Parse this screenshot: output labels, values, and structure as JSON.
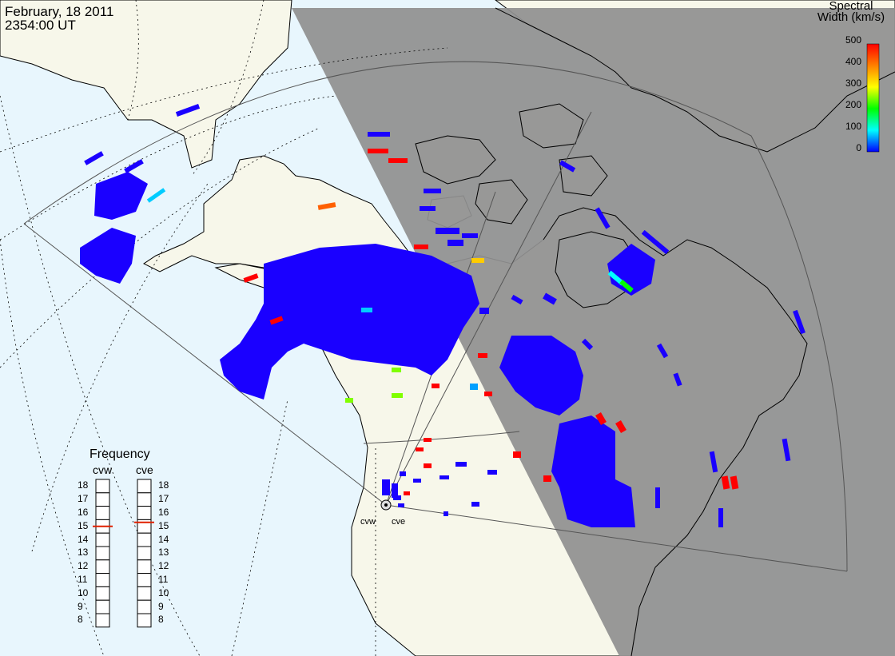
{
  "header": {
    "date": "February, 18 2011",
    "time": "2354:00 UT"
  },
  "colorbar": {
    "title_line1": "Spectral",
    "title_line2": "Width (km/s)",
    "ticks": [
      "500",
      "400",
      "300",
      "200",
      "100",
      "0"
    ],
    "colors": [
      "#ff0000",
      "#ff8000",
      "#ffff00",
      "#00ff00",
      "#00ffff",
      "#0000ff"
    ]
  },
  "frequency_panel": {
    "title": "Frequency",
    "radars": [
      {
        "name": "cvw",
        "freq_mhz": 15.0
      },
      {
        "name": "cve",
        "freq_mhz": 15.3
      }
    ],
    "scale": [
      "18",
      "17",
      "16",
      "15",
      "14",
      "13",
      "12",
      "11",
      "10",
      "9",
      "8"
    ]
  },
  "map": {
    "ocean_color": "#e8f6fd",
    "land_color": "#f7f7ea",
    "night_color": "#909090",
    "scatter_color": "#1a00ff",
    "radar_site_labels": [
      "cvw",
      "cve"
    ]
  }
}
